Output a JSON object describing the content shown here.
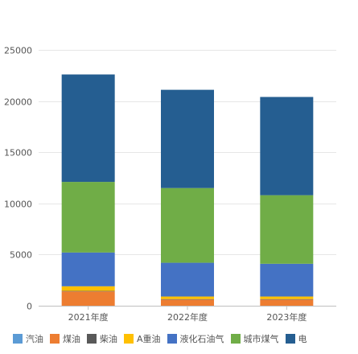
{
  "chart_data": {
    "type": "bar",
    "stacked": true,
    "categories": [
      "2021年度",
      "2022年度",
      "2023年度"
    ],
    "ylim": [
      0,
      25000
    ],
    "yticks": [
      0,
      5000,
      10000,
      15000,
      20000,
      25000
    ],
    "grid": true,
    "legend_position": "bottom",
    "series": [
      {
        "name": "汽油",
        "color": "#5b9bd5",
        "values": [
          0,
          0,
          0
        ]
      },
      {
        "name": "煤油",
        "color": "#ed7d31",
        "values": [
          1400,
          600,
          600
        ]
      },
      {
        "name": "柴油",
        "color": "#595959",
        "values": [
          50,
          50,
          50
        ]
      },
      {
        "name": "A重油",
        "color": "#ffc000",
        "values": [
          450,
          250,
          250
        ]
      },
      {
        "name": "液化石油气",
        "color": "#4472c4",
        "values": [
          3300,
          3300,
          3200
        ]
      },
      {
        "name": "城市煤气",
        "color": "#70ad47",
        "values": [
          6900,
          7300,
          6700
        ]
      },
      {
        "name": "电",
        "color": "#255e91",
        "values": [
          10500,
          9600,
          9600
        ]
      }
    ]
  }
}
